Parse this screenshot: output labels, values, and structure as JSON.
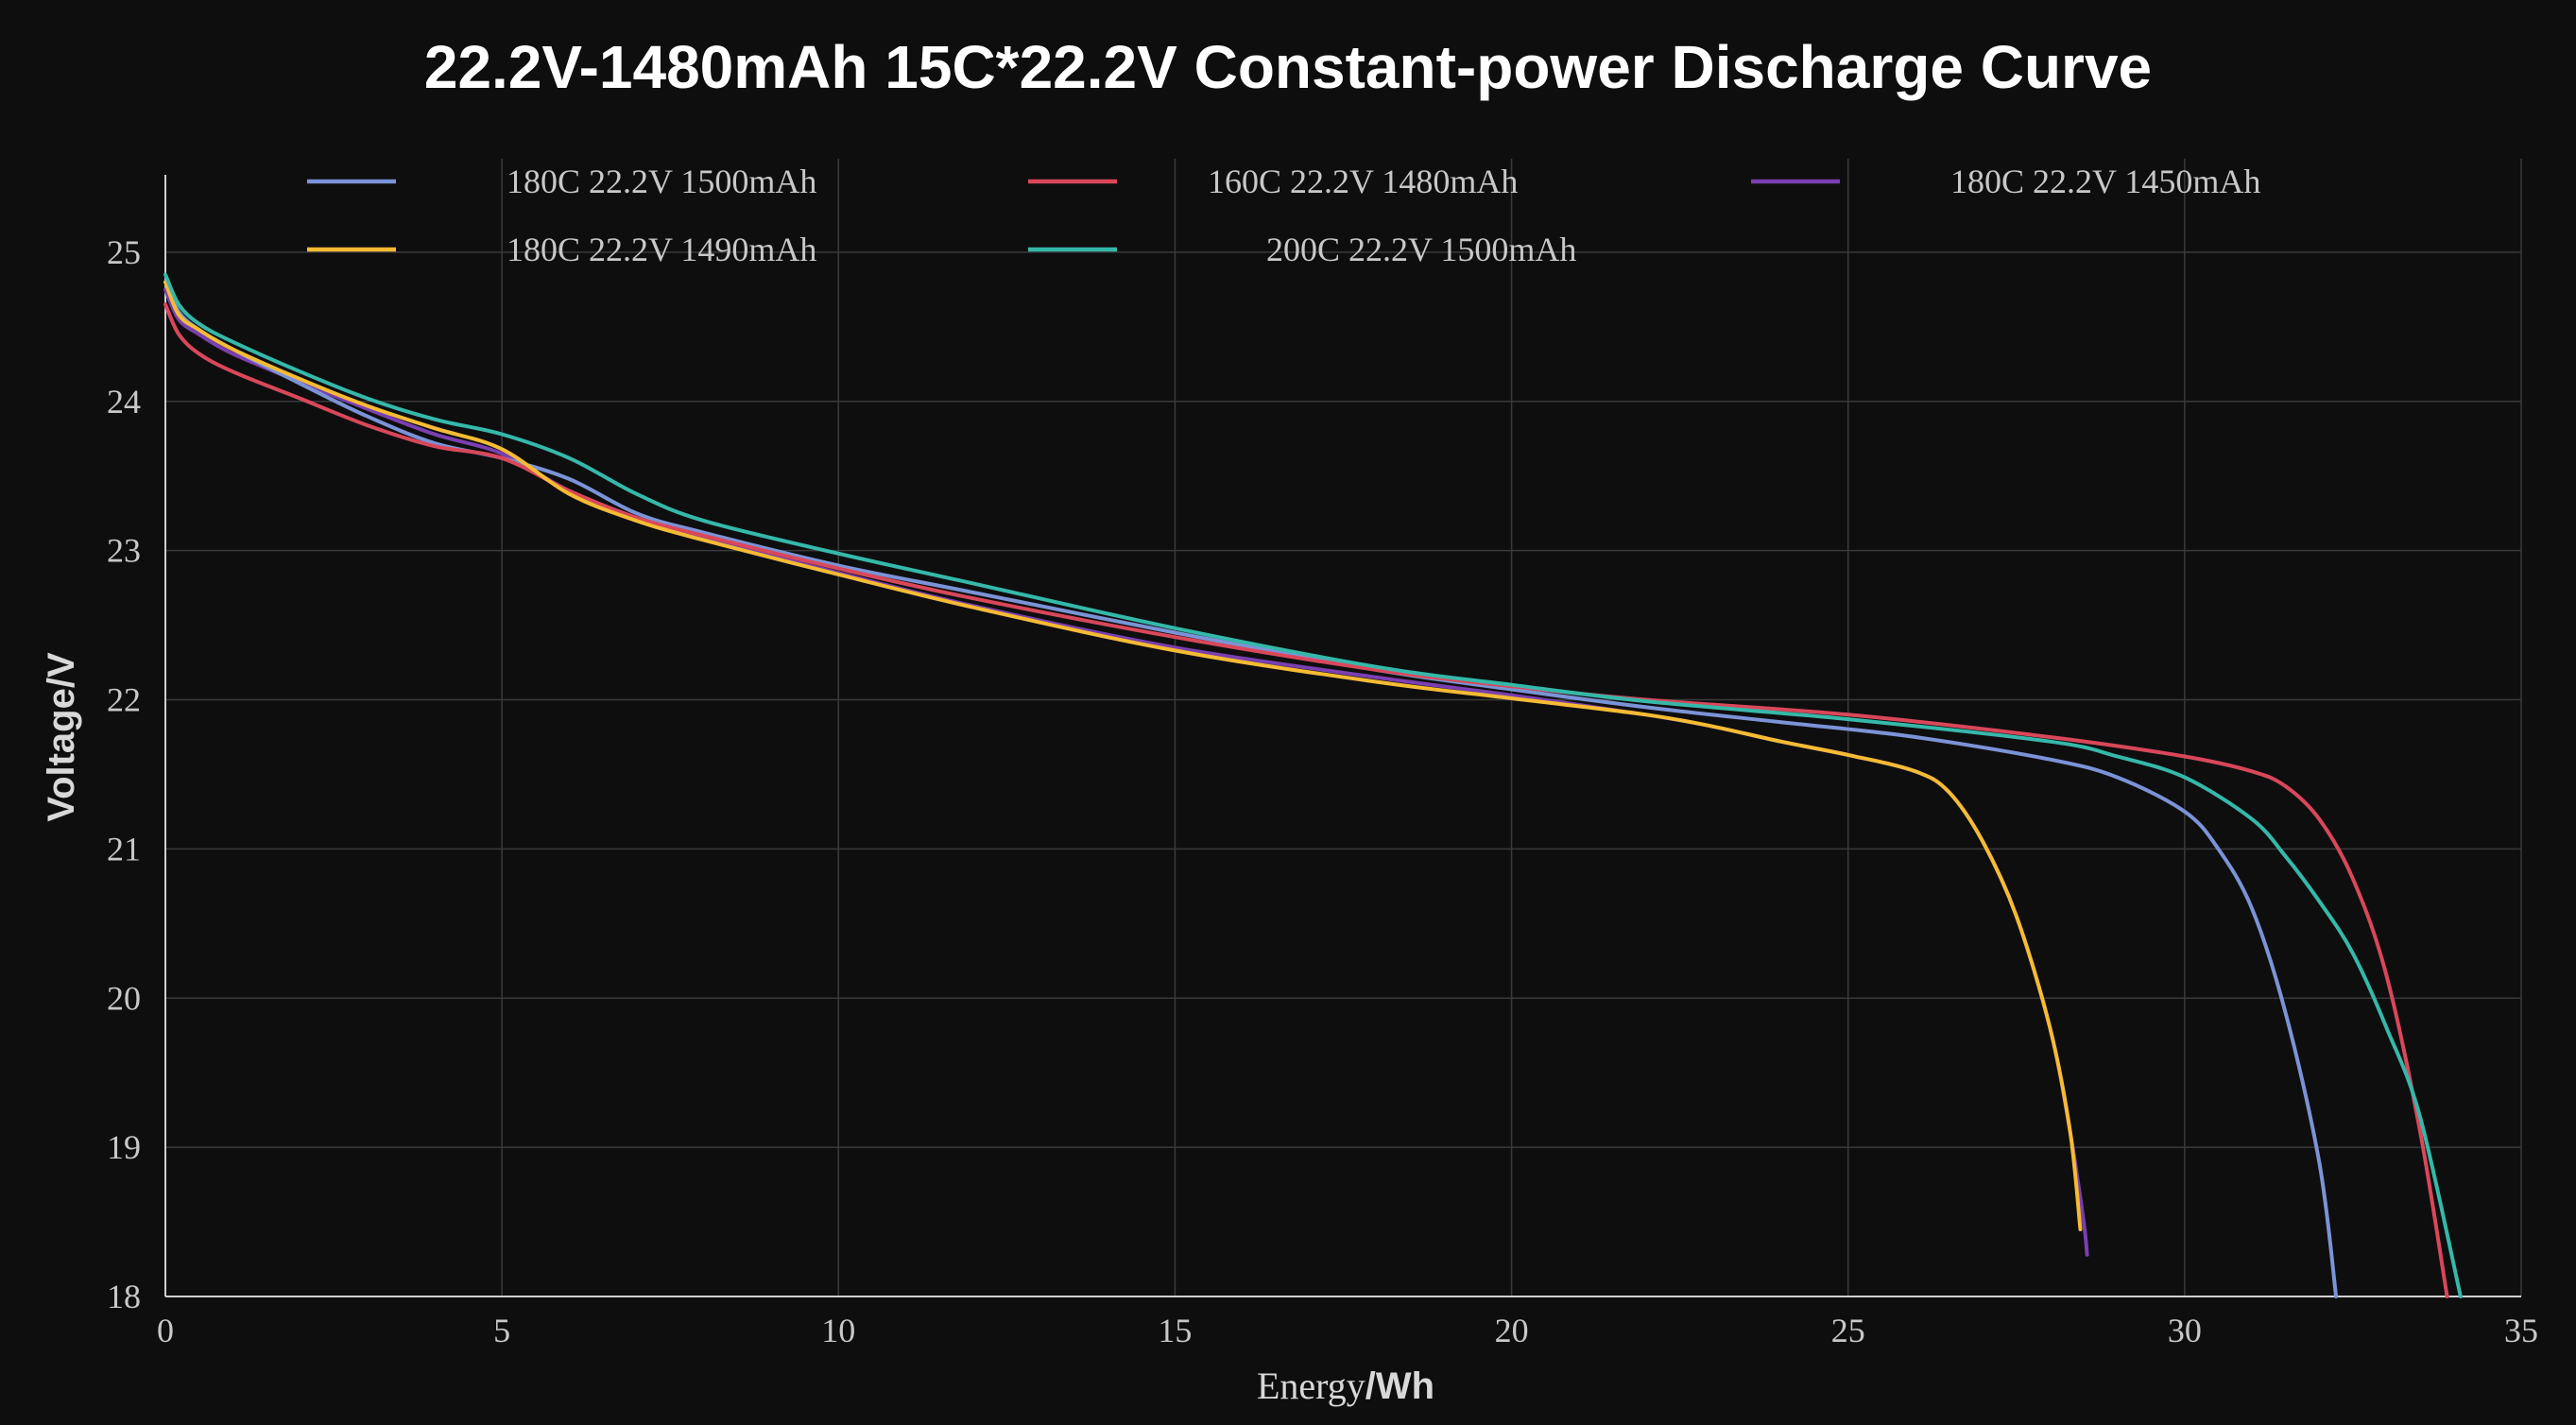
{
  "chart_data": {
    "type": "line",
    "title": "22.2V-1480mAh 15C*22.2V Constant-power Discharge Curve",
    "xlabel": "Energy/Wh",
    "xlabel_parts": [
      "Energy",
      "/Wh"
    ],
    "ylabel": "Voltage/V",
    "xlim": [
      0,
      35
    ],
    "ylim": [
      18,
      25.5
    ],
    "xticks": [
      "0",
      "5",
      "10",
      "15",
      "20",
      "25",
      "30",
      "35"
    ],
    "yticks": [
      "18",
      "19",
      "20",
      "21",
      "22",
      "23",
      "24",
      "25"
    ],
    "grid": true,
    "legend_position": "top",
    "series": [
      {
        "name": "180C 22.2V 1500mAh",
        "color": "#7b93d6",
        "x": [
          0,
          0.2,
          0.5,
          1,
          2,
          3,
          4,
          5,
          6,
          7,
          8,
          10,
          12,
          15,
          18,
          20,
          22,
          24,
          26,
          28,
          29,
          30,
          30.5,
          31,
          31.5,
          32,
          32.25
        ],
        "y": [
          24.8,
          24.6,
          24.48,
          24.35,
          24.12,
          23.9,
          23.72,
          23.62,
          23.48,
          23.25,
          23.12,
          22.9,
          22.72,
          22.45,
          22.2,
          22.07,
          21.95,
          21.85,
          21.75,
          21.6,
          21.48,
          21.25,
          21.0,
          20.6,
          19.9,
          18.9,
          18.0
        ]
      },
      {
        "name": "160C 22.2V 1480mAh",
        "color": "#d9475a",
        "x": [
          0,
          0.2,
          0.5,
          1,
          2,
          3,
          4,
          5,
          6,
          7,
          8,
          10,
          12,
          15,
          18,
          20,
          22,
          25,
          28,
          30,
          31,
          31.5,
          32,
          32.5,
          33,
          33.5,
          33.9
        ],
        "y": [
          24.65,
          24.45,
          24.32,
          24.2,
          24.02,
          23.84,
          23.7,
          23.62,
          23.4,
          23.22,
          23.1,
          22.88,
          22.68,
          22.42,
          22.2,
          22.09,
          22.0,
          21.9,
          21.75,
          21.62,
          21.52,
          21.42,
          21.2,
          20.8,
          20.15,
          19.1,
          18.0
        ]
      },
      {
        "name": "180C 22.2V 1450mAh",
        "color": "#7a3fb0",
        "x": [
          0,
          0.2,
          0.5,
          1,
          2,
          3,
          4,
          5,
          6,
          7,
          8,
          10,
          12,
          15,
          18,
          20,
          22,
          23,
          24,
          25,
          26,
          26.5,
          27,
          27.5,
          28,
          28.3,
          28.5,
          28.55
        ],
        "y": [
          24.75,
          24.55,
          24.45,
          24.32,
          24.13,
          23.95,
          23.78,
          23.65,
          23.4,
          23.22,
          23.08,
          22.85,
          22.63,
          22.35,
          22.15,
          22.03,
          21.9,
          21.82,
          21.72,
          21.63,
          21.52,
          21.38,
          21.05,
          20.55,
          19.8,
          19.1,
          18.5,
          18.28
        ]
      },
      {
        "name": "180C 22.2V 1490mAh",
        "color": "#f5bb33",
        "x": [
          0,
          0.2,
          0.5,
          1,
          2,
          3,
          4,
          5,
          6,
          7,
          8,
          10,
          12,
          15,
          18,
          20,
          22,
          23,
          24,
          25,
          26,
          26.5,
          27,
          27.5,
          28,
          28.3,
          28.45
        ],
        "y": [
          24.8,
          24.58,
          24.48,
          24.35,
          24.15,
          23.97,
          23.82,
          23.68,
          23.38,
          23.2,
          23.07,
          22.84,
          22.62,
          22.33,
          22.12,
          22.01,
          21.9,
          21.82,
          21.72,
          21.63,
          21.52,
          21.38,
          21.05,
          20.55,
          19.8,
          19.1,
          18.45
        ]
      },
      {
        "name": "200C 22.2V 1500mAh",
        "color": "#35b8a9",
        "x": [
          0,
          0.2,
          0.5,
          1,
          2,
          3,
          4,
          5,
          6,
          7,
          8,
          10,
          12,
          15,
          18,
          20,
          22,
          25,
          28,
          29,
          30,
          31,
          31.5,
          32,
          32.5,
          33,
          33.5,
          34.1
        ],
        "y": [
          24.85,
          24.65,
          24.52,
          24.4,
          24.2,
          24.02,
          23.88,
          23.78,
          23.62,
          23.38,
          23.2,
          22.98,
          22.78,
          22.48,
          22.22,
          22.1,
          21.99,
          21.87,
          21.72,
          21.62,
          21.48,
          21.2,
          20.95,
          20.65,
          20.3,
          19.8,
          19.2,
          18.0
        ]
      }
    ]
  }
}
